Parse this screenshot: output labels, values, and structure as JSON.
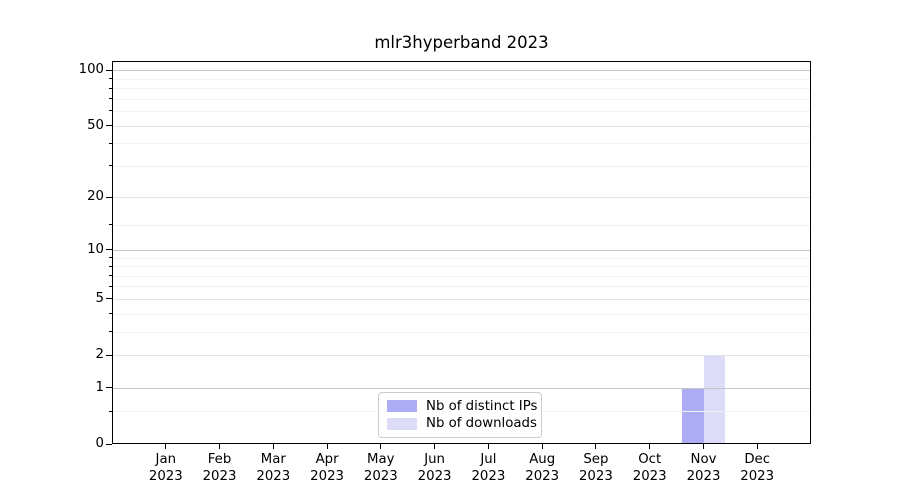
{
  "chart_data": {
    "type": "bar",
    "title": "mlr3hyperband 2023",
    "categories": [
      {
        "label": "Jan",
        "year": "2023"
      },
      {
        "label": "Feb",
        "year": "2023"
      },
      {
        "label": "Mar",
        "year": "2023"
      },
      {
        "label": "Apr",
        "year": "2023"
      },
      {
        "label": "May",
        "year": "2023"
      },
      {
        "label": "Jun",
        "year": "2023"
      },
      {
        "label": "Jul",
        "year": "2023"
      },
      {
        "label": "Aug",
        "year": "2023"
      },
      {
        "label": "Sep",
        "year": "2023"
      },
      {
        "label": "Oct",
        "year": "2023"
      },
      {
        "label": "Nov",
        "year": "2023"
      },
      {
        "label": "Dec",
        "year": "2023"
      }
    ],
    "series": [
      {
        "name": "Nb of distinct IPs",
        "color": "#acacf4",
        "values": [
          0,
          0,
          0,
          0,
          0,
          0,
          0,
          0,
          0,
          0,
          1,
          0
        ]
      },
      {
        "name": "Nb of downloads",
        "color": "#dcdcf8",
        "values": [
          0,
          0,
          0,
          0,
          0,
          0,
          0,
          0,
          0,
          0,
          2,
          0
        ]
      }
    ],
    "y_axis": {
      "scale": "log1p",
      "min": 0,
      "max": 112,
      "ticks": [
        {
          "value": 0,
          "label": "0"
        },
        {
          "value": 1,
          "label": "1"
        },
        {
          "value": 2,
          "label": "2"
        },
        {
          "value": 5,
          "label": "5"
        },
        {
          "value": 10,
          "label": "10"
        },
        {
          "value": 20,
          "label": "20"
        },
        {
          "value": 50,
          "label": "50"
        },
        {
          "value": 100,
          "label": "100"
        }
      ]
    },
    "grid": {
      "major_values": [
        1,
        10,
        100
      ],
      "major_color": "#c6c6c6",
      "medium_values": [
        2,
        5,
        20,
        50
      ],
      "medium_color": "#e4e4e4",
      "minor_values": [
        0.5,
        3,
        4,
        6,
        7,
        8,
        9,
        14,
        30,
        40,
        60,
        70,
        80,
        90
      ],
      "minor_color": "#f1f1f1"
    },
    "legend": {
      "position": "lower-center"
    }
  }
}
